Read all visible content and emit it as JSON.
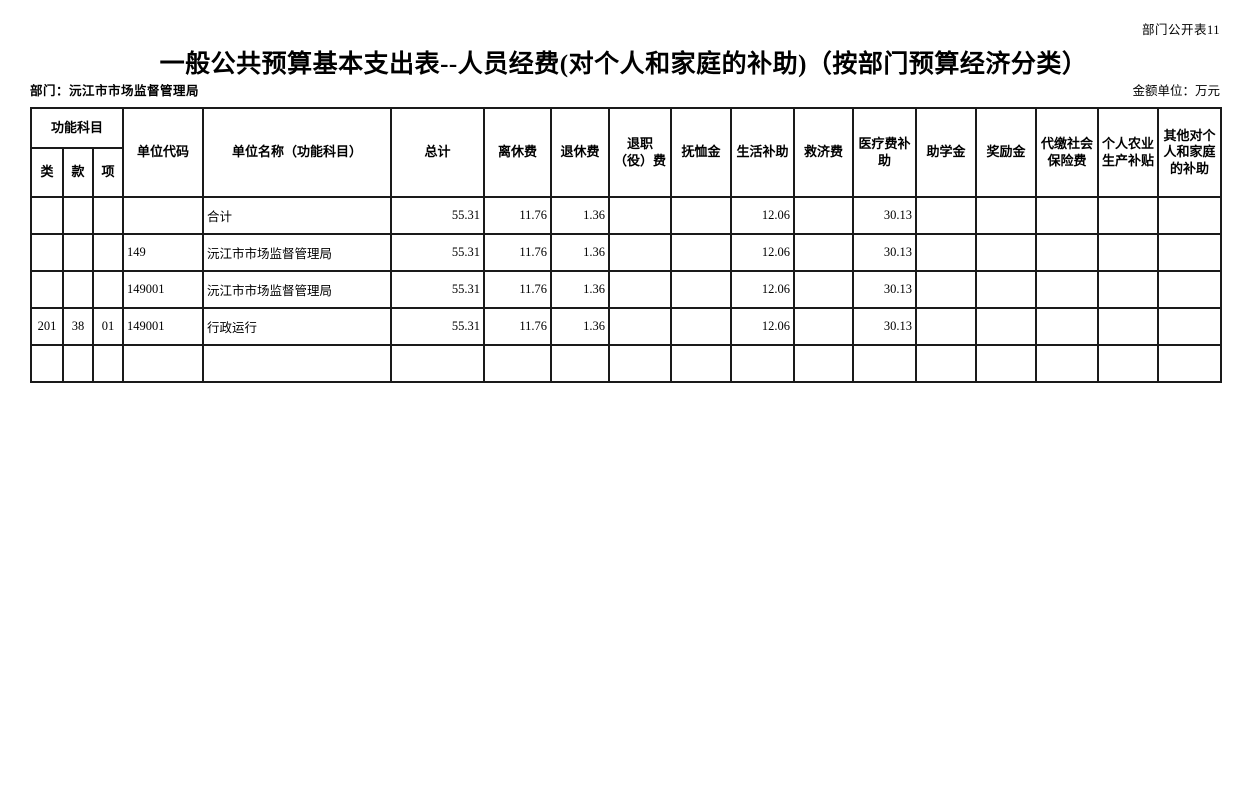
{
  "page": {
    "doc_label": "部门公开表11",
    "title": "一般公共预算基本支出表--人员经费(对个人和家庭的补助)（按部门预算经济分类）",
    "department": "部门：沅江市市场监督管理局",
    "unit_note": "金额单位：万元"
  },
  "table": {
    "header": {
      "func_group_label": "功能科目",
      "func_sub_labels": [
        "类",
        "款",
        "项"
      ],
      "unit_code_label": "单位代码",
      "unit_name_label": "单位名称（功能科目）",
      "value_labels": [
        "总计",
        "离休费",
        "退休费",
        "退职（役）费",
        "抚恤金",
        "生活补助",
        "救济费",
        "医疗费补助",
        "助学金",
        "奖励金",
        "代缴社会保险费",
        "个人农业生产补贴",
        "其他对个人和家庭的补助"
      ]
    },
    "rows": [
      {
        "func": [
          "",
          "",
          ""
        ],
        "code": "",
        "name": "合计",
        "level": 0,
        "values": [
          "55.31",
          "11.76",
          "1.36",
          "",
          "",
          "12.06",
          "",
          "30.13",
          "",
          "",
          "",
          "",
          ""
        ]
      },
      {
        "func": [
          "",
          "",
          ""
        ],
        "code": "149",
        "name": "沅江市市场监督管理局",
        "level": 1,
        "values": [
          "55.31",
          "11.76",
          "1.36",
          "",
          "",
          "12.06",
          "",
          "30.13",
          "",
          "",
          "",
          "",
          ""
        ]
      },
      {
        "func": [
          "",
          "",
          ""
        ],
        "code": "149001",
        "name": "沅江市市场监督管理局",
        "level": 2,
        "values": [
          "55.31",
          "11.76",
          "1.36",
          "",
          "",
          "12.06",
          "",
          "30.13",
          "",
          "",
          "",
          "",
          ""
        ]
      },
      {
        "func": [
          "201",
          "38",
          "01"
        ],
        "code": "149001",
        "name": "行政运行",
        "level": 3,
        "values": [
          "55.31",
          "11.76",
          "1.36",
          "",
          "",
          "12.06",
          "",
          "30.13",
          "",
          "",
          "",
          "",
          ""
        ]
      },
      {
        "func": [
          "",
          "",
          ""
        ],
        "code": "",
        "name": "",
        "level": 0,
        "values": [
          "",
          "",
          "",
          "",
          "",
          "",
          "",
          "",
          "",
          "",
          "",
          "",
          ""
        ]
      }
    ]
  }
}
